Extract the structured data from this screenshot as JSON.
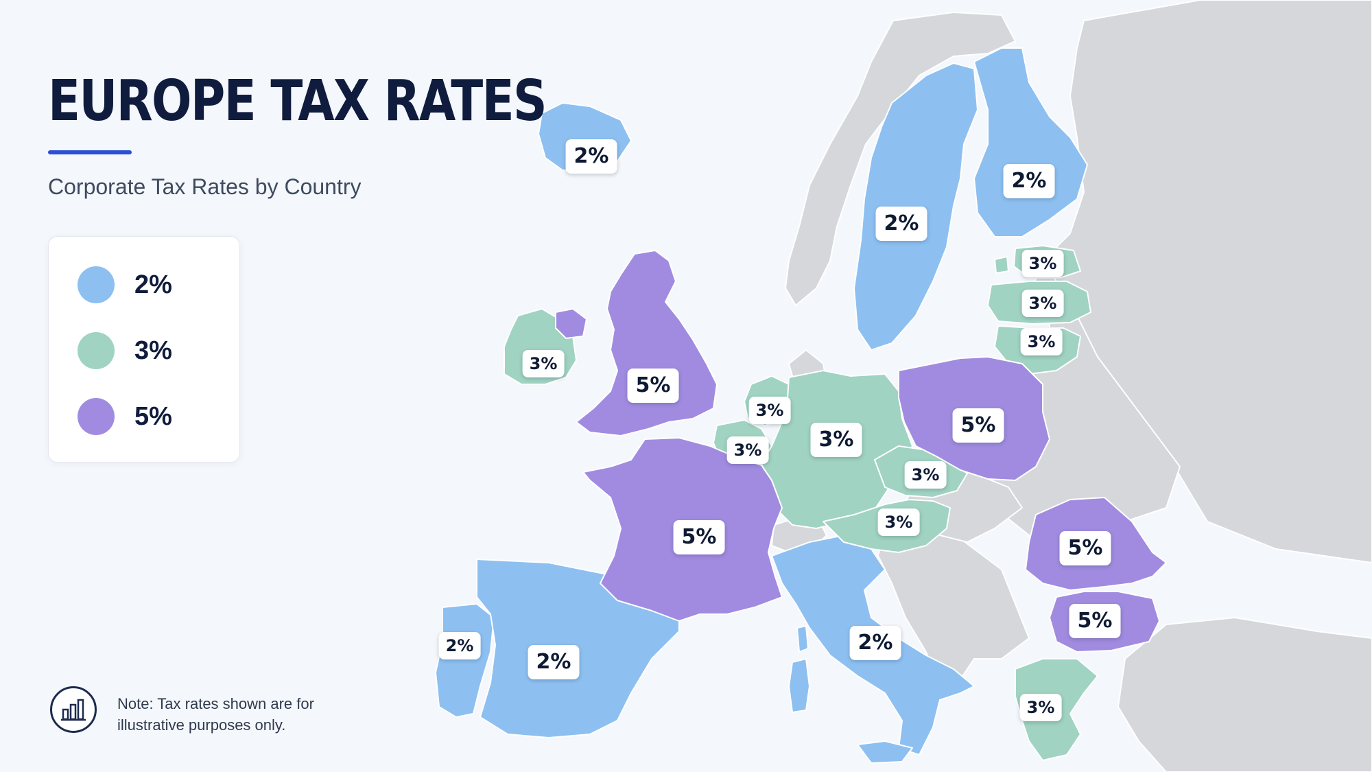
{
  "title": "EUROPE TAX RATES",
  "subtitle": "Corporate Tax Rates by Country",
  "legend": [
    {
      "label": "2%",
      "color": "#8dc0f1"
    },
    {
      "label": "3%",
      "color": "#a0d3c1"
    },
    {
      "label": "5%",
      "color": "#a18be0"
    }
  ],
  "colors": {
    "background": "#f4f7fb",
    "land_no_data": "#d5d7db",
    "accent_rule": "#2b4fd6",
    "title_text": "#101c3d"
  },
  "note": {
    "line1": "Note: Tax rates shown are for",
    "line2": "illustrative purposes only.",
    "icon": "bar-chart-icon"
  },
  "map_labels": {
    "iceland": "2%",
    "finland": "2%",
    "sweden": "2%",
    "estonia": "3%",
    "latvia": "3%",
    "lithuania": "3%",
    "ireland": "3%",
    "united_kingdom": "5%",
    "netherlands": "3%",
    "belgium": "3%",
    "germany": "3%",
    "poland": "5%",
    "czechia": "3%",
    "austria": "3%",
    "france": "5%",
    "romania": "5%",
    "bulgaria": "5%",
    "portugal": "2%",
    "spain": "2%",
    "italy": "2%",
    "greece": "3%"
  }
}
